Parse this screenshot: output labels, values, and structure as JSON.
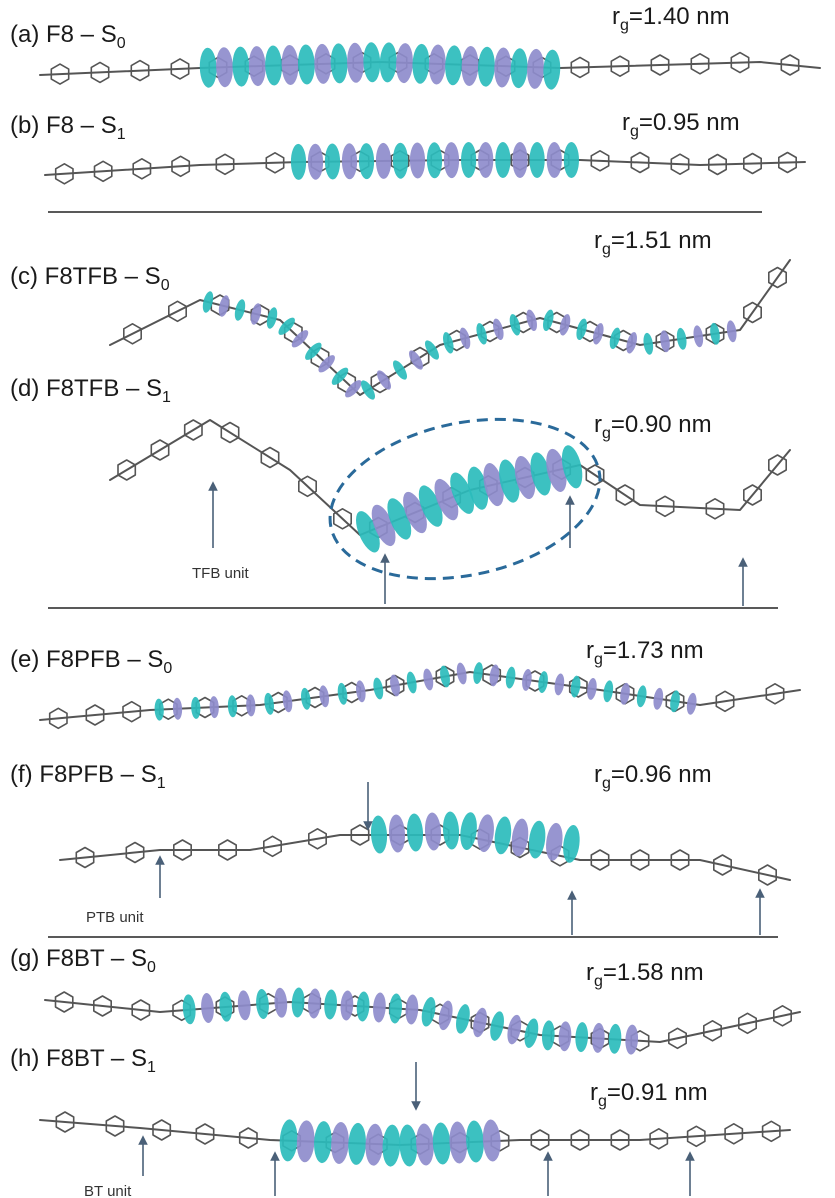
{
  "panels": [
    {
      "label": "(a) F8 – ",
      "state": "S",
      "state_sub": "0",
      "rg_text": "=1.40 nm"
    },
    {
      "label": "(b) F8 – ",
      "state": "S",
      "state_sub": "1",
      "rg_text": "=0.95 nm"
    },
    {
      "label": "(c) F8TFB – ",
      "state": "S",
      "state_sub": "0",
      "rg_text": "=1.51 nm"
    },
    {
      "label": "(d) F8TFB – ",
      "state": "S",
      "state_sub": "1",
      "rg_text": "=0.90 nm"
    },
    {
      "label": "(e) F8PFB – ",
      "state": "S",
      "state_sub": "0",
      "rg_text": "=1.73 nm"
    },
    {
      "label": "(f) F8PFB – ",
      "state": "S",
      "state_sub": "1",
      "rg_text": "=0.96 nm"
    },
    {
      "label": "(g) F8BT – ",
      "state": "S",
      "state_sub": "0",
      "rg_text": "=1.58 nm"
    },
    {
      "label": "(h) F8BT – ",
      "state": "S",
      "state_sub": "1",
      "rg_text": "=0.91 nm"
    }
  ],
  "rg_symbol": "r",
  "rg_sub": "g",
  "unit_labels": {
    "tfb": "TFB unit",
    "ptb": "PTB unit",
    "bt": "BT unit"
  },
  "colors": {
    "orbital_positive": "#2bbcbc",
    "orbital_negative": "#8e8ccc",
    "molecule": "#555555",
    "highlight_ellipse": "#2a6a9a",
    "arrow": "#4a6078"
  }
}
